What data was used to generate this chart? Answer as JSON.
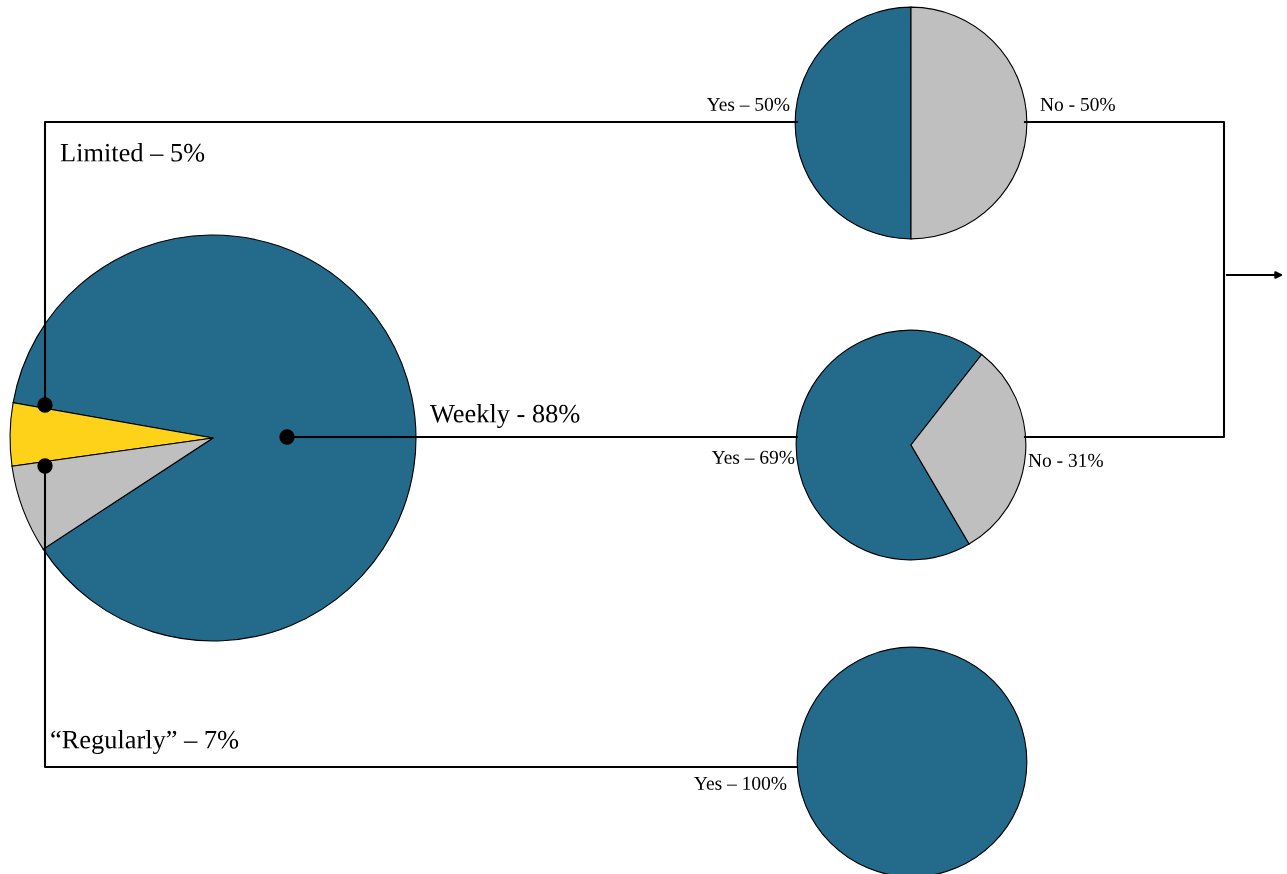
{
  "chart_data": [
    {
      "type": "pie",
      "categories": [
        "Weekly - 88%",
        "Limited – 5%",
        "“Regularly” – 7%"
      ],
      "values": [
        88,
        5,
        7
      ],
      "colors": [
        "#236a8b",
        "#ffd21a",
        "#bfbfbf"
      ]
    },
    {
      "type": "pie",
      "categories": [
        "Yes – 50%",
        "No - 50%"
      ],
      "values": [
        50,
        50
      ],
      "colors": [
        "#236a8b",
        "#bfbfbf"
      ]
    },
    {
      "type": "pie",
      "categories": [
        "Yes – 69%",
        "No - 31%"
      ],
      "values": [
        69,
        31
      ],
      "colors": [
        "#236a8b",
        "#bfbfbf"
      ]
    },
    {
      "type": "pie",
      "categories": [
        "Yes – 100%"
      ],
      "values": [
        100
      ],
      "colors": [
        "#236a8b"
      ]
    }
  ]
}
